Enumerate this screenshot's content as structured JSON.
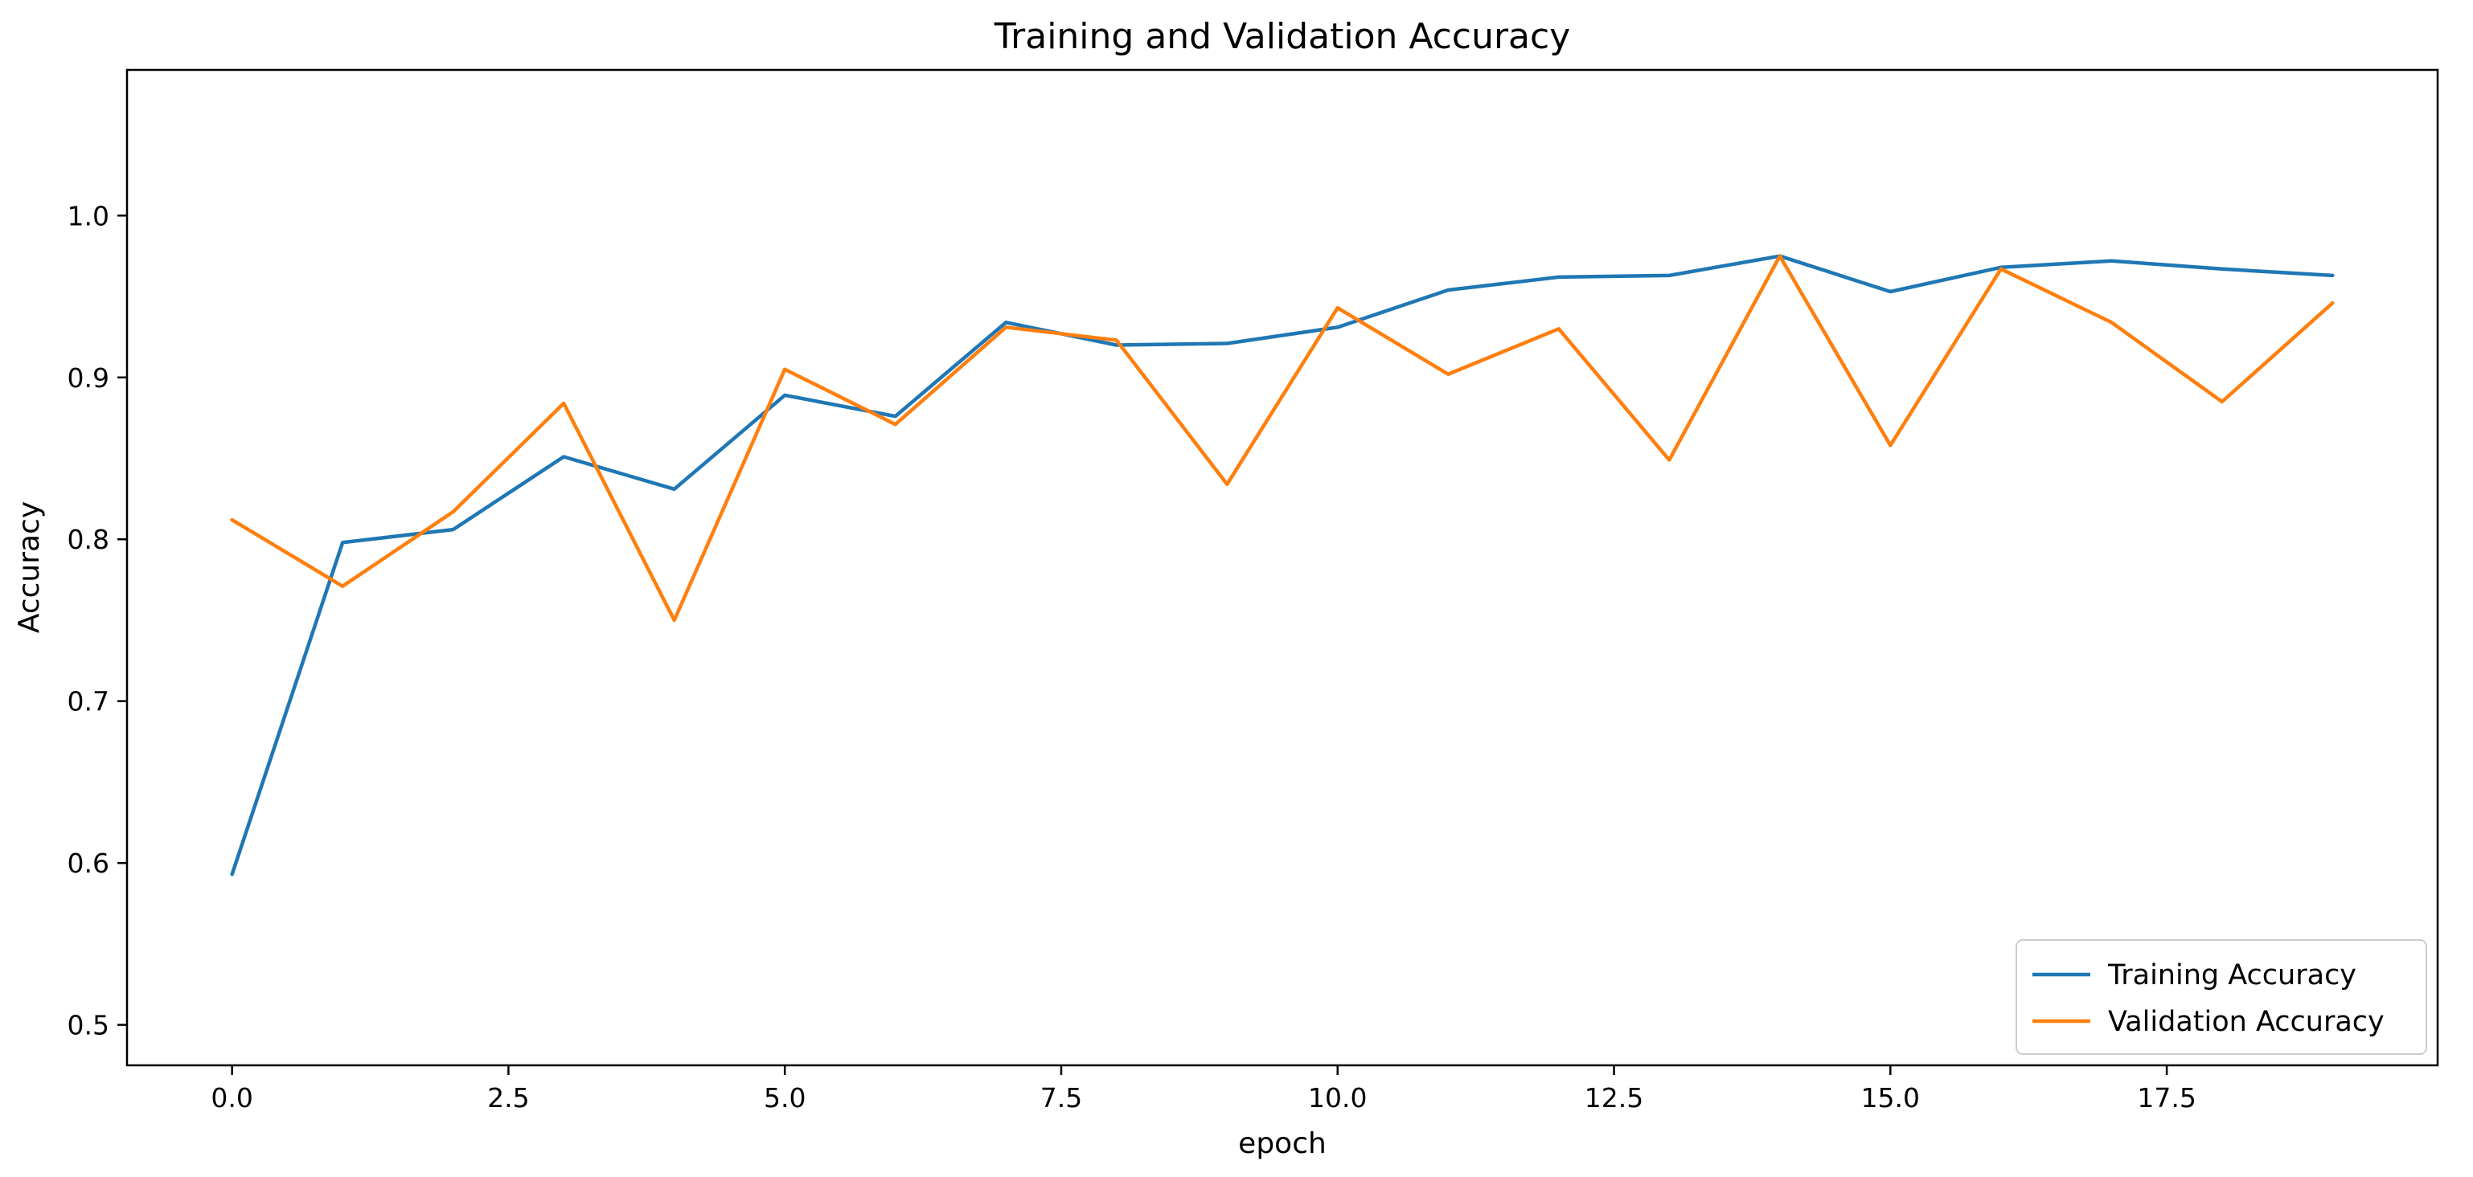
{
  "chart_data": {
    "type": "line",
    "title": "Training and Validation Accuracy",
    "xlabel": "epoch",
    "ylabel": "Accuracy",
    "xlim": [
      -0.95,
      19.95
    ],
    "ylim": [
      0.475,
      1.09
    ],
    "xticks": [
      0.0,
      2.5,
      5.0,
      7.5,
      10.0,
      12.5,
      15.0,
      17.5
    ],
    "xtick_labels": [
      "0.0",
      "2.5",
      "5.0",
      "7.5",
      "10.0",
      "12.5",
      "15.0",
      "17.5"
    ],
    "yticks": [
      0.5,
      0.6,
      0.7,
      0.8,
      0.9,
      1.0
    ],
    "ytick_labels": [
      "0.5",
      "0.6",
      "0.7",
      "0.8",
      "0.9",
      "1.0"
    ],
    "grid": false,
    "legend_position": "lower-right",
    "x": [
      0,
      1,
      2,
      3,
      4,
      5,
      6,
      7,
      8,
      9,
      10,
      11,
      12,
      13,
      14,
      15,
      16,
      17,
      18,
      19
    ],
    "series": [
      {
        "name": "Training Accuracy",
        "color": "#1f77b4",
        "values": [
          0.593,
          0.798,
          0.806,
          0.851,
          0.831,
          0.889,
          0.876,
          0.934,
          0.92,
          0.921,
          0.931,
          0.954,
          0.962,
          0.963,
          0.975,
          0.953,
          0.968,
          0.972,
          0.967,
          0.963
        ]
      },
      {
        "name": "Validation Accuracy",
        "color": "#ff7f0e",
        "values": [
          0.812,
          0.771,
          0.817,
          0.884,
          0.75,
          0.905,
          0.871,
          0.931,
          0.923,
          0.834,
          0.943,
          0.902,
          0.93,
          0.849,
          0.975,
          0.858,
          0.967,
          0.934,
          0.885,
          0.946
        ]
      }
    ]
  }
}
